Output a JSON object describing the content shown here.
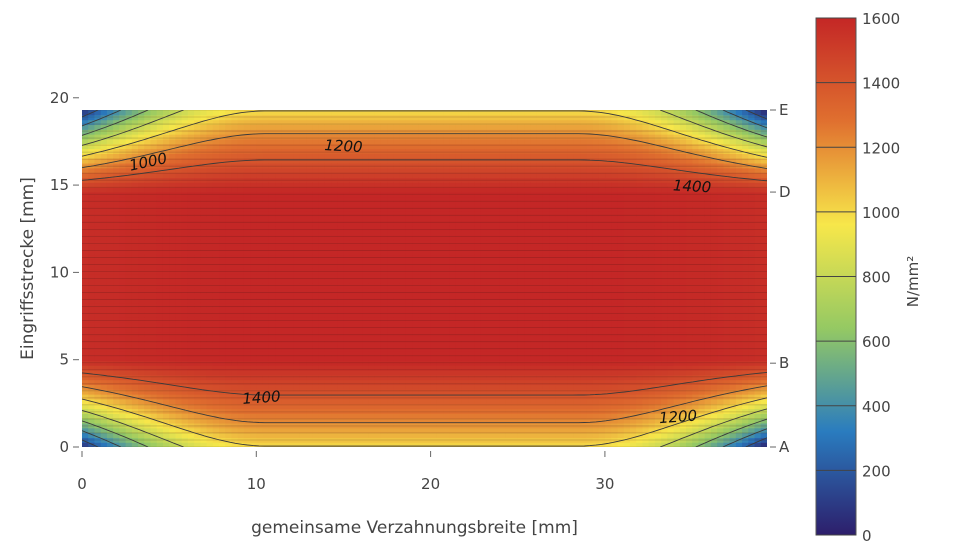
{
  "chart_data": {
    "type": "heatmap",
    "xlabel": "gemeinsame Verzahnungsbreite [mm]",
    "ylabel": "Eingriffsstrecke [mm]",
    "colorbar_label": "N/mm²",
    "xlim": [
      0,
      39.3
    ],
    "ylim": [
      0,
      19.3
    ],
    "x_ticks": [
      0,
      10,
      20,
      30
    ],
    "y_ticks": [
      0,
      5,
      10,
      15,
      20
    ],
    "colorbar_range": [
      0,
      1600
    ],
    "colorbar_ticks": [
      0,
      200,
      400,
      600,
      800,
      1000,
      1200,
      1400,
      1600
    ],
    "colorscale": [
      "#2d1e6b",
      "#2a7cbf",
      "#95c963",
      "#f7e74a",
      "#e0702f",
      "#c42726"
    ],
    "contour_levels": [
      200,
      400,
      600,
      800,
      1000,
      1200,
      1400
    ],
    "contour_labels": [
      {
        "text": "1000",
        "x": 3.8,
        "y": 16.3
      },
      {
        "text": "1200",
        "x": 15,
        "y": 17.2
      },
      {
        "text": "1400",
        "x": 35,
        "y": 14.9
      },
      {
        "text": "1400",
        "x": 10.3,
        "y": 2.8
      },
      {
        "text": "1200",
        "x": 34.2,
        "y": 1.7
      }
    ],
    "peak_stress": 1600,
    "peak_region": {
      "x": [
        2,
        37
      ],
      "y": [
        5,
        14.6
      ]
    },
    "points_of_contact": [
      {
        "label": "E",
        "y": 19.3
      },
      {
        "label": "D",
        "y": 14.6
      },
      {
        "label": "B",
        "y": 4.8
      },
      {
        "label": "A",
        "y": 0
      }
    ]
  }
}
